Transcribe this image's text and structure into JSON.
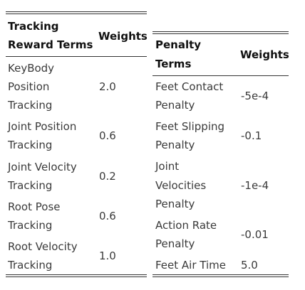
{
  "tracking_table": {
    "headers": {
      "term": [
        "Tracking",
        "Reward Terms"
      ],
      "weights": "Weights"
    },
    "rows": [
      {
        "term": [
          "KeyBody",
          "Position",
          "Tracking"
        ],
        "weight": "2.0"
      },
      {
        "term": [
          "Joint Position",
          "Tracking"
        ],
        "weight": "0.6"
      },
      {
        "term": [
          "Joint Velocity",
          "Tracking"
        ],
        "weight": "0.2"
      },
      {
        "term": [
          "Root Pose",
          "Tracking"
        ],
        "weight": "0.6"
      },
      {
        "term": [
          "Root Velocity",
          "Tracking"
        ],
        "weight": "1.0"
      }
    ]
  },
  "penalty_table": {
    "headers": {
      "term": [
        "Penalty",
        "Terms"
      ],
      "weights": "Weights"
    },
    "rows": [
      {
        "term": [
          "Feet Contact",
          "Penalty"
        ],
        "weight": "-5e-4"
      },
      {
        "term": [
          "Feet Slipping",
          "Penalty"
        ],
        "weight": "-0.1"
      },
      {
        "term": [
          "Joint",
          "Velocities",
          "Penalty"
        ],
        "weight": "-1e-4"
      },
      {
        "term": [
          "Action Rate",
          "Penalty"
        ],
        "weight": "-0.01"
      },
      {
        "term": [
          "Feet Air Time"
        ],
        "weight": "5.0"
      }
    ]
  }
}
